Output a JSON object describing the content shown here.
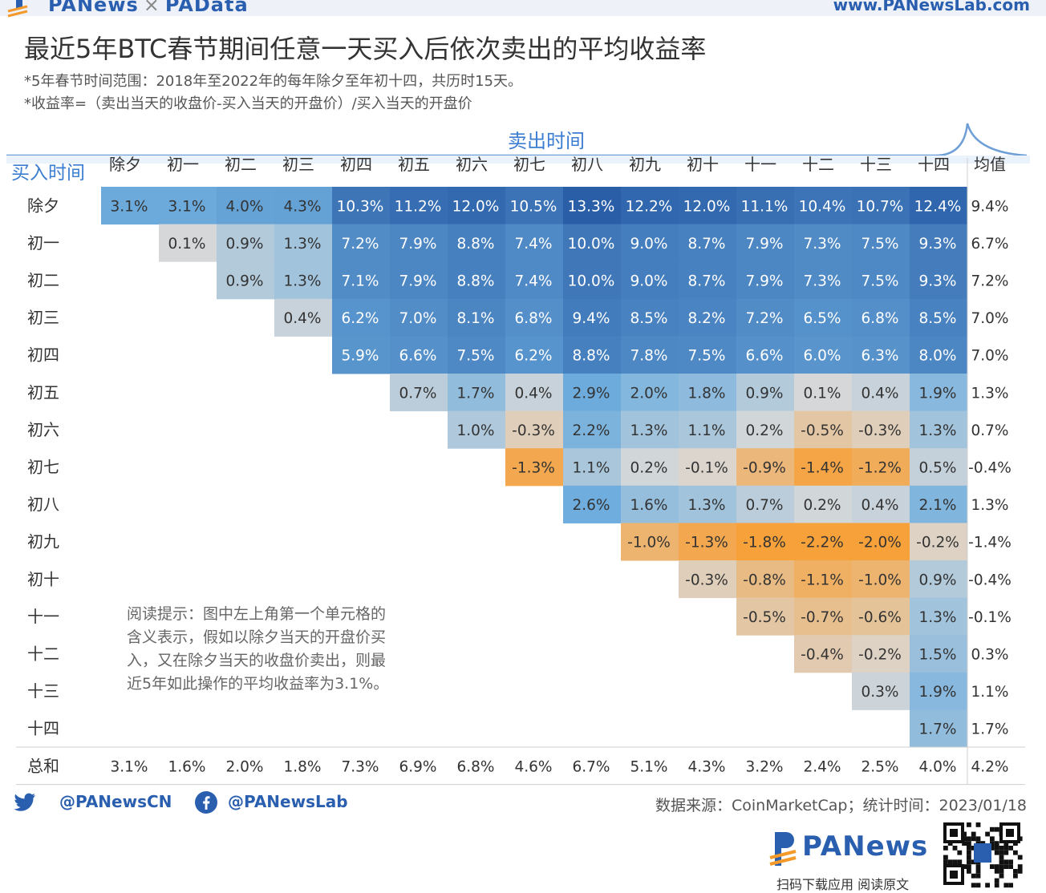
{
  "header": {
    "brand_left_a": "PANews",
    "brand_sep": "×",
    "brand_left_b": "PAData",
    "brand_right": "www.PANewsLab.com"
  },
  "title": "最近5年BTC春节期间任意一天买入后依次卖出的平均收益率",
  "subtitle1": "*5年春节时间范围：2018年至2022年的每年除夕至年初十四，共历时15天。",
  "subtitle2": "*收益率=（卖出当天的收盘价-买入当天的开盘价）/买入当天的开盘价",
  "chart_data": {
    "type": "heatmap",
    "sell_label": "卖出时间",
    "buy_label": "买入时间",
    "avg_label": "均值",
    "total_label": "总和",
    "columns": [
      "除夕",
      "初一",
      "初二",
      "初三",
      "初四",
      "初五",
      "初六",
      "初七",
      "初八",
      "初九",
      "初十",
      "十一",
      "十二",
      "十三",
      "十四"
    ],
    "rows": [
      "除夕",
      "初一",
      "初二",
      "初三",
      "初四",
      "初五",
      "初六",
      "初七",
      "初八",
      "初九",
      "初十",
      "十一",
      "十二",
      "十三",
      "十四"
    ],
    "values": [
      [
        3.1,
        3.1,
        4.0,
        4.3,
        10.3,
        11.2,
        12.0,
        10.5,
        13.3,
        12.2,
        12.0,
        11.1,
        10.4,
        10.7,
        12.4
      ],
      [
        null,
        0.1,
        0.9,
        1.3,
        7.2,
        7.9,
        8.8,
        7.4,
        10.0,
        9.0,
        8.7,
        7.9,
        7.3,
        7.5,
        9.3
      ],
      [
        null,
        null,
        0.9,
        1.3,
        7.1,
        7.9,
        8.8,
        7.4,
        10.0,
        9.0,
        8.7,
        7.9,
        7.3,
        7.5,
        9.3
      ],
      [
        null,
        null,
        null,
        0.4,
        6.2,
        7.0,
        8.1,
        6.8,
        9.4,
        8.5,
        8.2,
        7.2,
        6.5,
        6.8,
        8.5
      ],
      [
        null,
        null,
        null,
        null,
        5.9,
        6.6,
        7.5,
        6.2,
        8.8,
        7.8,
        7.5,
        6.6,
        6.0,
        6.3,
        8.0
      ],
      [
        null,
        null,
        null,
        null,
        null,
        0.7,
        1.7,
        0.4,
        2.9,
        2.0,
        1.8,
        0.9,
        0.1,
        0.4,
        1.9
      ],
      [
        null,
        null,
        null,
        null,
        null,
        null,
        1.0,
        -0.3,
        2.2,
        1.3,
        1.1,
        0.2,
        -0.5,
        -0.3,
        1.3
      ],
      [
        null,
        null,
        null,
        null,
        null,
        null,
        null,
        -1.3,
        1.1,
        0.2,
        -0.1,
        -0.9,
        -1.4,
        -1.2,
        0.5
      ],
      [
        null,
        null,
        null,
        null,
        null,
        null,
        null,
        null,
        2.6,
        1.6,
        1.3,
        0.7,
        0.2,
        0.4,
        2.1
      ],
      [
        null,
        null,
        null,
        null,
        null,
        null,
        null,
        null,
        null,
        -1.0,
        -1.3,
        -1.8,
        -2.2,
        -2.0,
        -0.2
      ],
      [
        null,
        null,
        null,
        null,
        null,
        null,
        null,
        null,
        null,
        null,
        -0.3,
        -0.8,
        -1.1,
        -1.0,
        0.9
      ],
      [
        null,
        null,
        null,
        null,
        null,
        null,
        null,
        null,
        null,
        null,
        null,
        -0.5,
        -0.7,
        -0.6,
        1.3
      ],
      [
        null,
        null,
        null,
        null,
        null,
        null,
        null,
        null,
        null,
        null,
        null,
        null,
        -0.4,
        -0.2,
        1.5
      ],
      [
        null,
        null,
        null,
        null,
        null,
        null,
        null,
        null,
        null,
        null,
        null,
        null,
        null,
        0.3,
        1.9
      ],
      [
        null,
        null,
        null,
        null,
        null,
        null,
        null,
        null,
        null,
        null,
        null,
        null,
        null,
        null,
        1.7
      ]
    ],
    "row_avg": [
      9.4,
      6.7,
      7.2,
      7.0,
      7.0,
      1.3,
      0.7,
      -0.4,
      1.3,
      -1.4,
      -0.4,
      -0.1,
      0.3,
      1.1,
      1.7
    ],
    "col_total": [
      3.1,
      1.6,
      2.0,
      1.8,
      7.3,
      6.9,
      6.8,
      4.6,
      6.7,
      5.1,
      4.3,
      3.2,
      2.4,
      2.5,
      4.0
    ],
    "total_avg": 4.2,
    "unit": "%",
    "note": "阅读提示：图中左上角第一个单元格的含义表示，假如以除夕当天的开盘价买入，又在除夕当天的收盘价卖出，则最近5年如此操作的平均收益率为3.1%。",
    "colors": {
      "positive_max": "#2a5fa8",
      "neutral": "#d9d9d9",
      "negative_max": "#f7a13a"
    }
  },
  "footer": {
    "twitter_handle": "@PANewsCN",
    "facebook_handle": "@PANewsLab",
    "source": "数据来源：CoinMarketCap；统计时间：2023/01/18",
    "brand": "PANews",
    "scan_text": "扫码下载应用 阅读原文"
  }
}
